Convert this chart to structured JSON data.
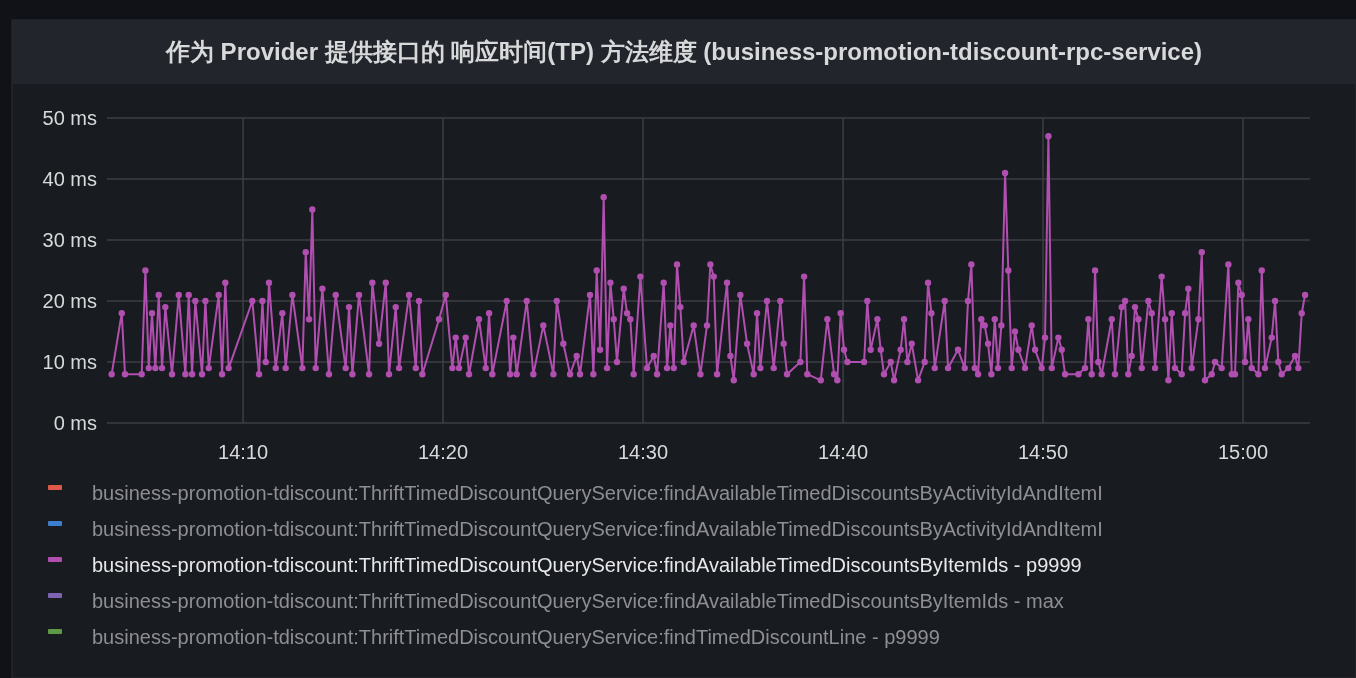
{
  "chart_data": {
    "type": "line",
    "title": "作为 Provider 提供接口的 响应时间(TP) 方法维度 (business-promotion-tdiscount-rpc-service)",
    "xlim": [
      14.0533,
      15.0558
    ],
    "xticks": [
      {
        "value": 14.1667,
        "label": "14:10"
      },
      {
        "value": 14.3333,
        "label": "14:20"
      },
      {
        "value": 14.5,
        "label": "14:30"
      },
      {
        "value": 14.6667,
        "label": "14:40"
      },
      {
        "value": 14.8333,
        "label": "14:50"
      },
      {
        "value": 15,
        "label": "15:00"
      }
    ],
    "ylim": [
      0,
      50
    ],
    "yticks": [
      {
        "value": 0,
        "label": "0 ms"
      },
      {
        "value": 10,
        "label": "10 ms"
      },
      {
        "value": 20,
        "label": "20 ms"
      },
      {
        "value": 30,
        "label": "30 ms"
      },
      {
        "value": 40,
        "label": "40 ms"
      },
      {
        "value": 50,
        "label": "50 ms"
      }
    ],
    "grid": true,
    "legend": "bottom",
    "marker": "circle",
    "line_style": "solid",
    "series": [
      {
        "name": "business-promotion-tdiscount:ThriftTimedDiscountQueryService:findAvailableTimedDiscountsByActivityIdAndItemI",
        "color": "#e0584a"
      },
      {
        "name": "business-promotion-tdiscount:ThriftTimedDiscountQueryService:findAvailableTimedDiscountsByActivityIdAndItemI",
        "color": "#3d7fcf"
      },
      {
        "name": "business-promotion-tdiscount:ThriftTimedDiscountQueryService:findAvailableTimedDiscountsByItemIds - p9999",
        "color": "#b04fb0",
        "x": [
          14.0572,
          14.0656,
          14.0683,
          14.0822,
          14.0853,
          14.0881,
          14.0908,
          14.0936,
          14.0964,
          14.0992,
          14.1019,
          14.1075,
          14.1131,
          14.1186,
          14.1214,
          14.1242,
          14.1269,
          14.1325,
          14.1353,
          14.1381,
          14.1464,
          14.1492,
          14.1519,
          14.1547,
          14.1744,
          14.18,
          14.1828,
          14.1856,
          14.1883,
          14.1939,
          14.1994,
          14.2022,
          14.2078,
          14.2161,
          14.2189,
          14.2217,
          14.2244,
          14.2272,
          14.2328,
          14.2383,
          14.2439,
          14.2522,
          14.255,
          14.2578,
          14.2633,
          14.2717,
          14.2744,
          14.28,
          14.2856,
          14.2883,
          14.2939,
          14.2967,
          14.305,
          14.3106,
          14.3133,
          14.3161,
          14.33,
          14.3356,
          14.3411,
          14.3439,
          14.3467,
          14.3522,
          14.355,
          14.3633,
          14.3689,
          14.3717,
          14.3744,
          14.3864,
          14.3892,
          14.3919,
          14.3947,
          14.4031,
          14.4086,
          14.4169,
          14.4253,
          14.4281,
          14.4336,
          14.4392,
          14.4447,
          14.4475,
          14.4558,
          14.4586,
          14.4614,
          14.4642,
          14.4672,
          14.47,
          14.4728,
          14.4756,
          14.4783,
          14.4839,
          14.4867,
          14.4894,
          14.4922,
          14.4978,
          14.5033,
          14.5089,
          14.5117,
          14.5172,
          14.52,
          14.5228,
          14.5256,
          14.5283,
          14.5311,
          14.5339,
          14.5422,
          14.5478,
          14.5533,
          14.5561,
          14.5589,
          14.5617,
          14.57,
          14.5728,
          14.5756,
          14.5811,
          14.5867,
          14.5922,
          14.595,
          14.5978,
          14.6033,
          14.6089,
          14.6144,
          14.6172,
          14.62,
          14.6311,
          14.6342,
          14.6369,
          14.6481,
          14.6536,
          14.6592,
          14.6619,
          14.6647,
          14.6675,
          14.6703,
          14.6842,
          14.6869,
          14.6897,
          14.6953,
          14.6981,
          14.7008,
          14.7064,
          14.7092,
          14.7147,
          14.7175,
          14.7203,
          14.7239,
          14.7292,
          14.7347,
          14.7375,
          14.7403,
          14.7431,
          14.7514,
          14.7542,
          14.7625,
          14.7681,
          14.7708,
          14.7736,
          14.7764,
          14.7792,
          14.7819,
          14.7847,
          14.7875,
          14.7903,
          14.7931,
          14.7958,
          14.7986,
          14.8017,
          14.8044,
          14.8072,
          14.81,
          14.8128,
          14.8183,
          14.8239,
          14.8267,
          14.8322,
          14.835,
          14.8378,
          14.8406,
          14.8461,
          14.8489,
          14.8517,
          14.8628,
          14.8683,
          14.8711,
          14.8739,
          14.8767,
          14.8794,
          14.8822,
          14.8906,
          14.8933,
          14.8989,
          14.9017,
          14.9044,
          14.9072,
          14.91,
          14.9128,
          14.9156,
          14.9211,
          14.9239,
          14.9267,
          14.9322,
          14.935,
          14.9378,
          14.9406,
          14.9433,
          14.9489,
          14.9517,
          14.9544,
          14.9572,
          14.9628,
          14.9656,
          14.9683,
          14.9739,
          14.9767,
          14.9822,
          14.9878,
          14.9906,
          14.9933,
          14.9961,
          14.9989,
          15.0017,
          15.0044,
          15.0072,
          15.0128,
          15.0156,
          15.0183,
          15.0239,
          15.0267,
          15.0294,
          15.0322,
          15.0378,
          15.0433,
          15.0461,
          15.0489,
          15.0517
        ],
        "values": [
          8,
          18,
          8,
          8,
          25,
          9,
          18,
          9,
          21,
          9,
          19,
          8,
          21,
          8,
          21,
          8,
          20,
          8,
          20,
          9,
          21,
          8,
          23,
          9,
          20,
          8,
          20,
          10,
          23,
          9,
          18,
          9,
          21,
          9,
          28,
          17,
          35,
          9,
          22,
          8,
          21,
          9,
          19,
          8,
          21,
          8,
          23,
          13,
          23,
          8,
          19,
          9,
          21,
          9,
          20,
          8,
          17,
          21,
          9,
          14,
          9,
          14,
          8,
          17,
          9,
          18,
          8,
          20,
          8,
          14,
          8,
          20,
          8,
          16,
          8,
          20,
          13,
          8,
          11,
          8,
          21,
          8,
          25,
          12,
          37,
          9,
          23,
          17,
          10,
          22,
          18,
          17,
          8,
          24,
          9,
          11,
          8,
          23,
          9,
          16,
          9,
          26,
          19,
          10,
          16,
          8,
          16,
          26,
          24,
          8,
          23,
          11,
          7,
          21,
          13,
          8,
          18,
          9,
          20,
          9,
          20,
          13,
          8,
          10,
          24,
          8,
          7,
          17,
          8,
          7,
          18,
          12,
          10,
          10,
          20,
          12,
          17,
          12,
          8,
          10,
          7,
          12,
          17,
          10,
          13,
          7,
          10,
          23,
          18,
          9,
          20,
          9,
          12,
          9,
          20,
          26,
          9,
          8,
          17,
          16,
          13,
          8,
          17,
          9,
          16,
          41,
          25,
          9,
          15,
          12,
          9,
          16,
          12,
          9,
          14,
          47,
          9,
          14,
          12,
          8,
          8,
          9,
          17,
          8,
          25,
          10,
          8,
          17,
          8,
          19,
          20,
          8,
          11,
          19,
          17,
          9,
          20,
          18,
          9,
          24,
          17,
          7,
          18,
          9,
          8,
          18,
          22,
          9,
          17,
          28,
          7,
          8,
          10,
          9,
          26,
          8,
          8,
          23,
          21,
          10,
          17,
          9,
          8,
          25,
          9,
          14,
          20,
          10,
          8,
          9,
          11,
          9,
          18,
          21
        ]
      },
      {
        "name": "business-promotion-tdiscount:ThriftTimedDiscountQueryService:findAvailableTimedDiscountsByItemIds - max",
        "color": "#7e63b0"
      },
      {
        "name": "business-promotion-tdiscount:ThriftTimedDiscountQueryService:findTimedDiscountLine - p9999",
        "color": "#5d9a45"
      }
    ]
  }
}
